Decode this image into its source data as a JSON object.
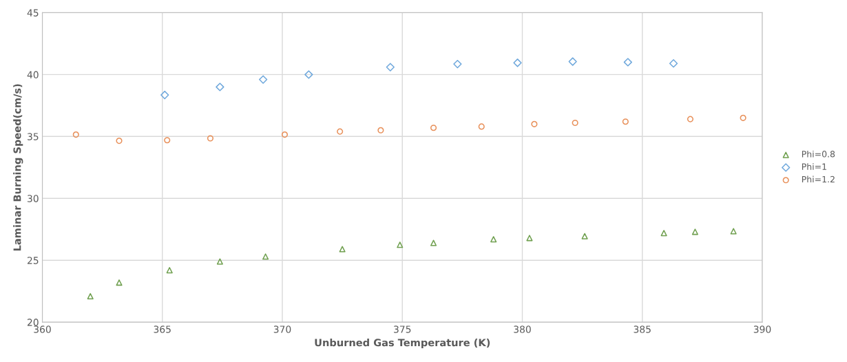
{
  "chart_data": {
    "type": "scatter",
    "xlabel": "Unburned Gas Temperature (K)",
    "ylabel": "Laminar Burning Speed(cm/s)",
    "xlim": [
      360,
      390
    ],
    "xticks": [
      360,
      365,
      370,
      375,
      380,
      385,
      390
    ],
    "ylim": [
      20,
      45
    ],
    "yticks": [
      20,
      25,
      30,
      35,
      40,
      45
    ],
    "grid": true,
    "legend": "right",
    "series": [
      {
        "name": "Phi=0.8",
        "color": "#70a050",
        "marker": "triangle",
        "x": [
          362.0,
          363.2,
          365.3,
          367.4,
          369.3,
          372.5,
          374.9,
          376.3,
          378.8,
          380.3,
          382.6,
          385.9,
          387.2,
          388.8
        ],
        "values": [
          22.1,
          23.2,
          24.2,
          24.9,
          25.3,
          25.9,
          26.25,
          26.4,
          26.7,
          26.8,
          26.95,
          27.2,
          27.3,
          27.35
        ]
      },
      {
        "name": "Phi=1",
        "color": "#6fa8dc",
        "marker": "diamond",
        "x": [
          365.1,
          367.4,
          369.2,
          371.1,
          374.5,
          377.3,
          379.8,
          382.1,
          384.4,
          386.3
        ],
        "values": [
          38.35,
          39.0,
          39.6,
          40.0,
          40.6,
          40.85,
          40.95,
          41.05,
          41.0,
          40.9
        ]
      },
      {
        "name": "Phi=1.2",
        "color": "#e8905a",
        "marker": "circle",
        "x": [
          361.4,
          363.2,
          365.2,
          367.0,
          370.1,
          372.4,
          374.1,
          376.3,
          378.3,
          380.5,
          382.2,
          384.3,
          387.0,
          389.2
        ],
        "values": [
          35.15,
          34.65,
          34.7,
          34.85,
          35.15,
          35.4,
          35.5,
          35.7,
          35.8,
          36.0,
          36.1,
          36.2,
          36.4,
          36.5
        ]
      }
    ]
  }
}
